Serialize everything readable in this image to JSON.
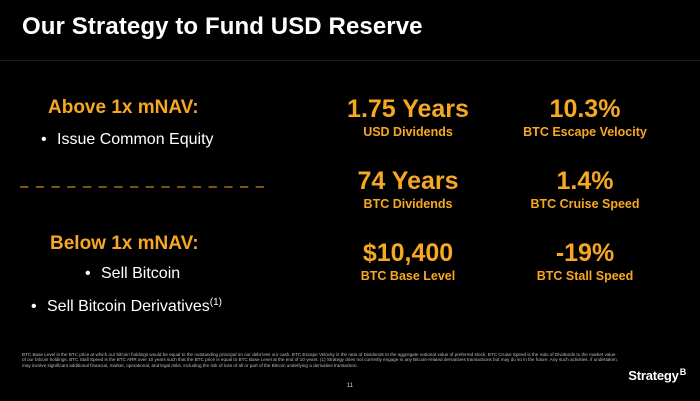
{
  "slide": {
    "title": "Our Strategy to Fund USD Reserve",
    "page_number": "11",
    "logo_text": "Strategy",
    "logo_mark": "B"
  },
  "left": {
    "above_heading": "Above 1x mNAV:",
    "above_bullets": [
      "Issue Common Equity"
    ],
    "divider": "– – – – – – – – – – – – – – – – – – – – – –",
    "below_heading": "Below 1x mNAV:",
    "below_bullets": [
      "Sell Bitcoin",
      "Sell Bitcoin Derivatives"
    ],
    "footnote_ref": "(1)"
  },
  "metrics": [
    {
      "value": "1.75 Years",
      "label": "USD Dividends"
    },
    {
      "value": "10.3%",
      "label": "BTC Escape Velocity"
    },
    {
      "value": "74 Years",
      "label": "BTC Dividends"
    },
    {
      "value": "1.4%",
      "label": "BTC Cruise Speed"
    },
    {
      "value": "$10,400",
      "label": "BTC Base Level"
    },
    {
      "value": "-19%",
      "label": "BTC Stall Speed"
    }
  ],
  "footnote": "BTC Base Level is the BTC price at which our bitcoin holdings would be equal to the outstanding principal on our debt less our cash. BTC Escape Velocity is the ratio of Dividends to the aggregate notional value of preferred stock. BTC Cruise Speed is the ratio of Dividends to the market value of our bitcoin holdings. BTC Stall Speed is the BTC ARR over 10 years such that the BTC price is equal to BTC Base Level at the end of 10 years. (1) Strategy does not currently engage in any Bitcoin-related derivatives transactions but may do so in the future. Any such activities, if undertaken, may involve significant additional financial, market, operational, and legal risks, including the risk of loss of all or part of the Bitcoin underlying a derivative transaction.",
  "colors": {
    "background": "#000000",
    "accent": "#f7a823",
    "text": "#ffffff"
  }
}
